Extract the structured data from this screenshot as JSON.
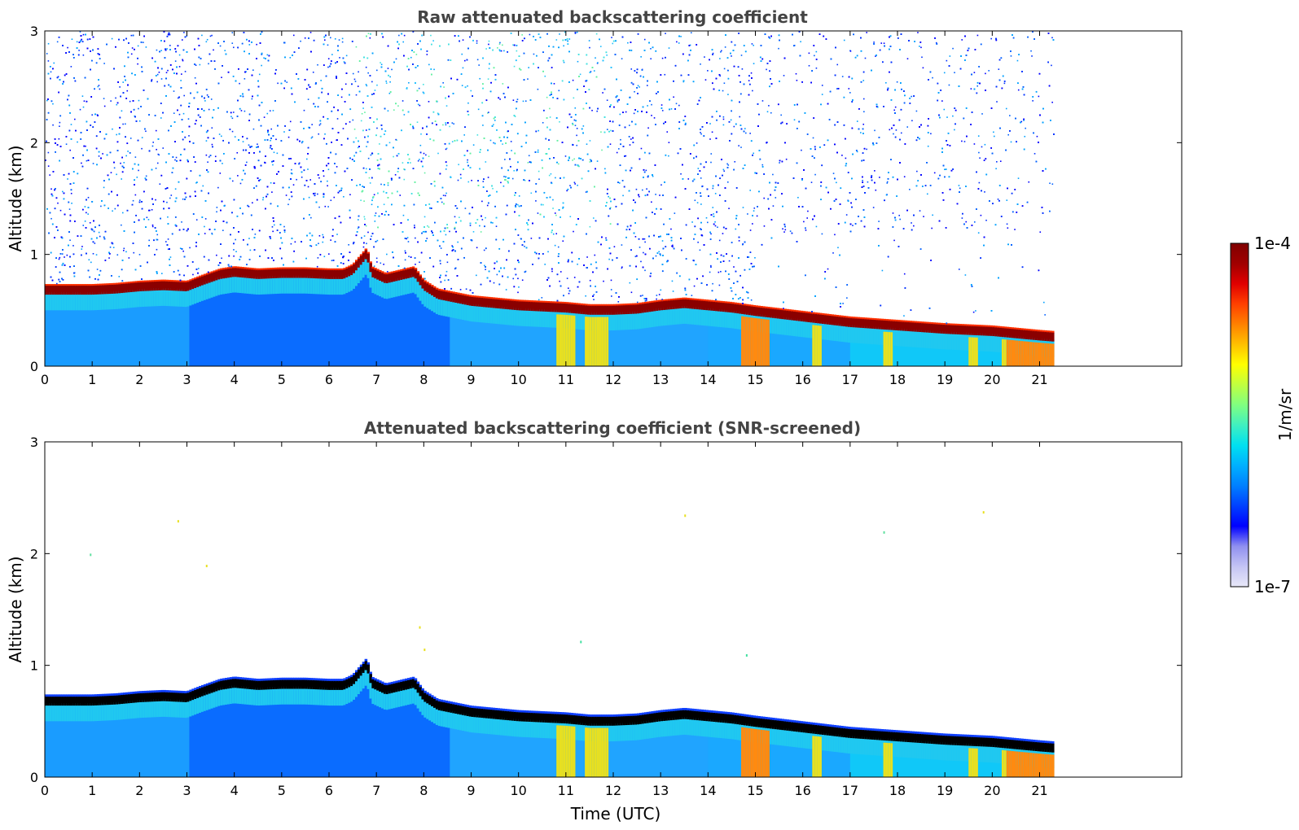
{
  "chart_data": [
    {
      "type": "heatmap",
      "title": "Raw attenuated backscattering coefficient",
      "xlabel": "",
      "ylabel": "Altitude (km)",
      "xlim": [
        0,
        24
      ],
      "ylim": [
        0,
        3
      ],
      "data_extent_x": [
        0,
        21.3
      ],
      "x_ticks": [
        "0",
        "1",
        "2",
        "3",
        "4",
        "5",
        "6",
        "7",
        "8",
        "9",
        "10",
        "11",
        "12",
        "13",
        "14",
        "15",
        "16",
        "17",
        "18",
        "19",
        "20",
        "21"
      ],
      "y_ticks": [
        "0",
        "1",
        "2",
        "3"
      ],
      "colorscale": "jet",
      "layer_top_km": [
        [
          0,
          0.72
        ],
        [
          0.5,
          0.72
        ],
        [
          1,
          0.72
        ],
        [
          1.5,
          0.73
        ],
        [
          2,
          0.75
        ],
        [
          2.5,
          0.76
        ],
        [
          3,
          0.75
        ],
        [
          3.3,
          0.8
        ],
        [
          3.7,
          0.86
        ],
        [
          4,
          0.88
        ],
        [
          4.5,
          0.86
        ],
        [
          5,
          0.87
        ],
        [
          5.5,
          0.87
        ],
        [
          6,
          0.86
        ],
        [
          6.3,
          0.86
        ],
        [
          6.5,
          0.9
        ],
        [
          6.8,
          1.05
        ],
        [
          6.9,
          0.88
        ],
        [
          7.2,
          0.82
        ],
        [
          7.5,
          0.85
        ],
        [
          7.8,
          0.88
        ],
        [
          8,
          0.76
        ],
        [
          8.3,
          0.68
        ],
        [
          9,
          0.62
        ],
        [
          10,
          0.58
        ],
        [
          11,
          0.56
        ],
        [
          11.5,
          0.54
        ],
        [
          12,
          0.54
        ],
        [
          12.5,
          0.55
        ],
        [
          13,
          0.58
        ],
        [
          13.5,
          0.6
        ],
        [
          14,
          0.58
        ],
        [
          14.5,
          0.56
        ],
        [
          15,
          0.53
        ],
        [
          16,
          0.48
        ],
        [
          17,
          0.43
        ],
        [
          18,
          0.4
        ],
        [
          19,
          0.37
        ],
        [
          20,
          0.35
        ],
        [
          20.5,
          0.33
        ],
        [
          21,
          0.31
        ],
        [
          21.3,
          0.3
        ]
      ],
      "notes": "Noisy blue/cyan/green speckle above ~0.8 km; dense speckle at 6.5-9 UTC; sparse above layer after ~15 UTC"
    },
    {
      "type": "heatmap",
      "title": "Attenuated backscattering coefficient (SNR-screened)",
      "xlabel": "Time (UTC)",
      "ylabel": "Altitude (km)",
      "xlim": [
        0,
        24
      ],
      "ylim": [
        0,
        3
      ],
      "data_extent_x": [
        0,
        21.3
      ],
      "x_ticks": [
        "0",
        "1",
        "2",
        "3",
        "4",
        "5",
        "6",
        "7",
        "8",
        "9",
        "10",
        "11",
        "12",
        "13",
        "14",
        "15",
        "16",
        "17",
        "18",
        "19",
        "20",
        "21"
      ],
      "y_ticks": [
        "0",
        "1",
        "2",
        "3"
      ],
      "colorscale": "jet",
      "notes": "Same boundary layer, noise removed; layer peak shown in black"
    }
  ],
  "colorbar": {
    "max_label": "1e-4",
    "min_label": "1e-7",
    "unit_label": "1/m/sr",
    "colors": [
      "#e8e8f8",
      "#c4c4f4",
      "#9090f0",
      "#0000ff",
      "#0040ff",
      "#0080ff",
      "#00b0ff",
      "#00e0f0",
      "#40f0c0",
      "#80ff80",
      "#c0ff40",
      "#ffff00",
      "#ffc000",
      "#ff8000",
      "#ff4000",
      "#e00000",
      "#a00000",
      "#800000"
    ]
  }
}
